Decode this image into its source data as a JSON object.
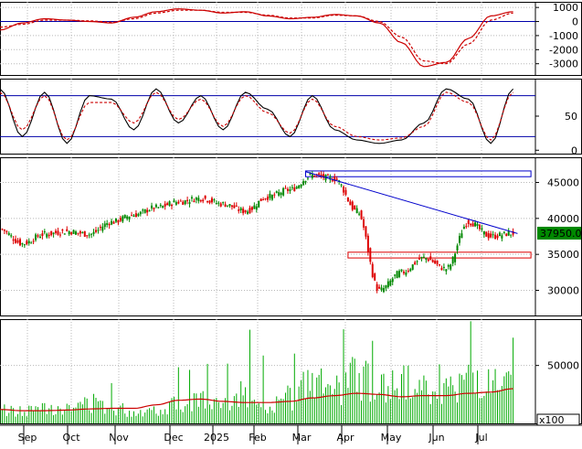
{
  "colors": {
    "background": "#ffffff",
    "panel_bg": "#ffffff",
    "grid": "#b8b8b8",
    "frame": "#000000",
    "macd_line": "#cc0000",
    "macd_signal": "#cc0000",
    "stoch_k": "#000000",
    "stoch_d": "#cc0000",
    "guide_line": "#0000aa",
    "trend_line": "#0000cc",
    "up_candle": "#008800",
    "down_candle": "#dd0000",
    "volume_bar": "#00aa00",
    "volume_ma": "#cc0000",
    "support_box": "#dd0000",
    "resist_box": "#0000cc",
    "price_tag_bg": "#008800",
    "price_tag_text": "#ffffff"
  },
  "chart_data": [
    {
      "type": "line",
      "panel": "macd",
      "y_ticks": [
        "1000",
        "0",
        "-1000",
        "-2000",
        "-3000"
      ],
      "ylim": [
        -3800,
        1400
      ],
      "zero_line": 0,
      "x": [
        0,
        10,
        20,
        30,
        40,
        50,
        60,
        70,
        80,
        90,
        100,
        110,
        120,
        130,
        140,
        150,
        160,
        170,
        180,
        190,
        200,
        210,
        220,
        230
      ],
      "series": [
        {
          "values": [
            -600,
            -100,
            200,
            100,
            0,
            -100,
            300,
            700,
            900,
            800,
            600,
            700,
            400,
            200,
            300,
            500,
            400,
            -100,
            -1500,
            -3200,
            -2900,
            -1200,
            400,
            700
          ]
        },
        {
          "values": [
            -400,
            -200,
            100,
            100,
            50,
            -50,
            200,
            600,
            800,
            800,
            650,
            650,
            450,
            250,
            250,
            450,
            400,
            0,
            -1100,
            -2800,
            -3000,
            -1600,
            100,
            600
          ]
        }
      ]
    },
    {
      "type": "line",
      "panel": "stochastic",
      "y_ticks": [
        "50",
        "0"
      ],
      "ylim": [
        -5,
        105
      ],
      "guide_lines": [
        80,
        20
      ],
      "x": [
        0,
        10,
        20,
        30,
        40,
        50,
        60,
        70,
        80,
        90,
        100,
        110,
        120,
        130,
        140,
        150,
        160,
        170,
        180,
        190,
        200,
        210,
        220,
        230
      ],
      "series": [
        {
          "values": [
            90,
            20,
            85,
            10,
            80,
            75,
            30,
            90,
            40,
            80,
            30,
            85,
            60,
            20,
            80,
            30,
            15,
            10,
            15,
            40,
            90,
            75,
            10,
            90
          ]
        },
        {
          "values": [
            85,
            30,
            80,
            15,
            70,
            70,
            40,
            85,
            45,
            75,
            35,
            80,
            55,
            25,
            75,
            35,
            20,
            15,
            18,
            35,
            85,
            70,
            15,
            85
          ]
        }
      ]
    },
    {
      "type": "candlestick",
      "panel": "price",
      "y_ticks": [
        "45000",
        "40000",
        "35000",
        "30000"
      ],
      "ylim": [
        26500,
        48500
      ],
      "last_price": "37950.00",
      "x": [
        0,
        10,
        20,
        30,
        40,
        50,
        60,
        70,
        80,
        90,
        100,
        110,
        120,
        130,
        140,
        150,
        160,
        170,
        180,
        190,
        200,
        210,
        220,
        230
      ],
      "close": [
        38500,
        36500,
        37800,
        38200,
        37800,
        39500,
        40500,
        41500,
        42300,
        42800,
        42000,
        41000,
        43000,
        44000,
        46000,
        45500,
        41000,
        30000,
        32500,
        34500,
        33000,
        39500,
        37500,
        37950
      ],
      "trend_line": {
        "from": [
          137,
          46500
        ],
        "to": [
          232,
          37900
        ]
      },
      "resistance_box": {
        "x_from": 137,
        "x_to": 238,
        "y_from": 45800,
        "y_to": 46600
      },
      "support_box": {
        "x_from": 156,
        "x_to": 238,
        "y_from": 34500,
        "y_to": 35300
      }
    },
    {
      "type": "bar",
      "panel": "volume",
      "y_ticks": [
        "50000"
      ],
      "unit_label": "x100",
      "ylim": [
        0,
        90000
      ],
      "x": [
        0,
        10,
        20,
        30,
        40,
        50,
        60,
        70,
        80,
        90,
        100,
        110,
        120,
        130,
        140,
        150,
        160,
        170,
        180,
        190,
        200,
        210,
        220,
        230
      ],
      "values": [
        12000,
        10000,
        15000,
        12000,
        18000,
        14000,
        10000,
        12000,
        18000,
        20000,
        15000,
        28000,
        16000,
        22000,
        35000,
        28000,
        40000,
        30000,
        35000,
        30000,
        28000,
        38000,
        32000,
        30000
      ],
      "ma": [
        12000,
        11000,
        11000,
        11500,
        12500,
        13000,
        13000,
        16000,
        20000,
        21000,
        19000,
        18000,
        18000,
        19000,
        22000,
        24000,
        26000,
        25000,
        23000,
        24000,
        24000,
        26000,
        27000,
        30000
      ]
    }
  ],
  "x_axis": {
    "months": [
      "Sep",
      "Oct",
      "Nov",
      "Dec",
      "2025",
      "Feb",
      "Mar",
      "Apr",
      "May",
      "Jun",
      "Jul"
    ],
    "month_positions": [
      30,
      78,
      130,
      190,
      237,
      282,
      330,
      378,
      428,
      478,
      527
    ]
  }
}
